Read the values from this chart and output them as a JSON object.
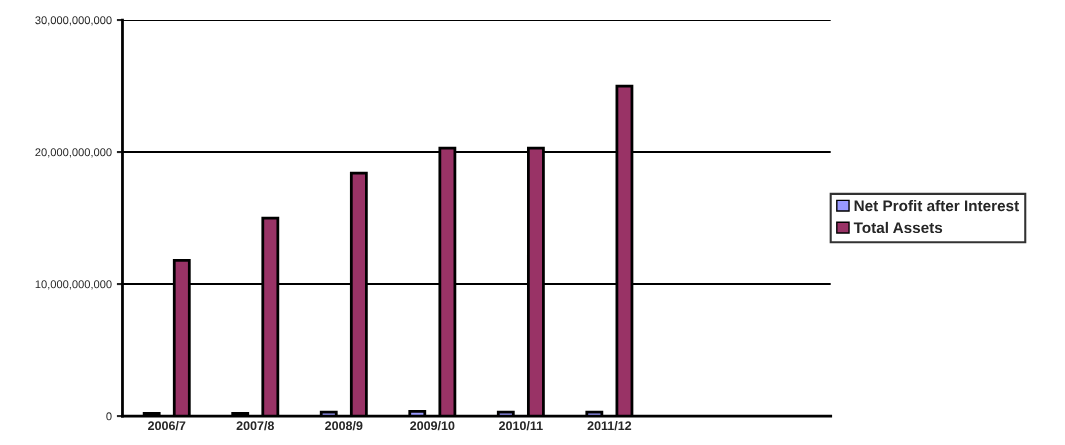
{
  "chart_data": {
    "type": "bar",
    "categories": [
      "2006/7",
      "2007/8",
      "2008/9",
      "2009/10",
      "2010/11",
      "2011/12",
      null,
      null
    ],
    "series": [
      {
        "name": "Net Profit after Interest",
        "color": "#9999ff",
        "values": [
          200000000,
          200000000,
          300000000,
          350000000,
          300000000,
          300000000,
          null,
          null
        ]
      },
      {
        "name": "Total Assets",
        "color": "#993366",
        "values": [
          11800000000,
          15000000000,
          18400000000,
          20300000000,
          20300000000,
          25000000000,
          null,
          null
        ]
      }
    ],
    "ylim": [
      0,
      30000000000
    ],
    "yticks": [
      {
        "value": 0,
        "label": "0"
      },
      {
        "value": 10000000000,
        "label": "10,000,000,000"
      },
      {
        "value": 20000000000,
        "label": "20,000,000,000"
      },
      {
        "value": 30000000000,
        "label": "30,000,000,000"
      }
    ],
    "grid": "y",
    "legend": "right"
  }
}
